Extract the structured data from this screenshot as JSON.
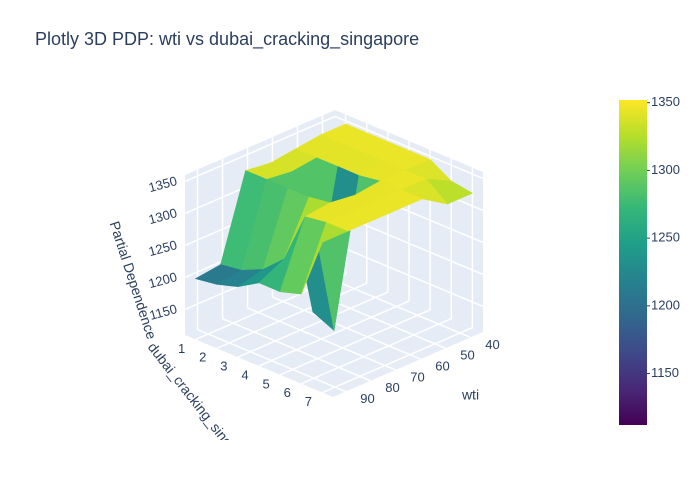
{
  "chart_data": {
    "type": "surface3d",
    "title": "Plotly 3D PDP: wti vs dubai_cracking_singapore",
    "x_label": "wti",
    "y_label": "dubai_cracking_singapore",
    "z_label": "Partial Dependence",
    "x": [
      35,
      45,
      55,
      65,
      75,
      85,
      95
    ],
    "y": [
      1,
      2,
      3,
      4,
      5,
      6,
      7
    ],
    "z": [
      [
        1345,
        1345,
        1340,
        1335,
        1340,
        1210,
        1205
      ],
      [
        1345,
        1345,
        1340,
        1335,
        1340,
        1215,
        1210
      ],
      [
        1345,
        1345,
        1340,
        1130,
        1340,
        1230,
        1220
      ],
      [
        1345,
        1345,
        1340,
        1115,
        1340,
        1260,
        1240
      ],
      [
        1345,
        1345,
        1345,
        1340,
        1345,
        1340,
        1240
      ],
      [
        1325,
        1345,
        1345,
        1345,
        1345,
        1345,
        1250
      ],
      [
        1320,
        1320,
        1345,
        1345,
        1345,
        1345,
        1345
      ]
    ],
    "xlim": [
      35,
      95
    ],
    "xticks": [
      40,
      50,
      60,
      70,
      80,
      90
    ],
    "ylim": [
      0.5,
      7.5
    ],
    "yticks": [
      1,
      2,
      3,
      4,
      5,
      6,
      7
    ],
    "zlim": [
      1110,
      1360
    ],
    "zticks": [
      1150,
      1200,
      1250,
      1300,
      1350
    ],
    "colorscale": [
      "#440154",
      "#482878",
      "#3e4989",
      "#31688e",
      "#26828e",
      "#1f9e89",
      "#35b779",
      "#6ece58",
      "#b5de2b",
      "#fde725"
    ],
    "colorbar": {
      "cmin": 1112,
      "cmax": 1352,
      "ticks": [
        1150,
        1200,
        1250,
        1300,
        1350
      ]
    }
  }
}
